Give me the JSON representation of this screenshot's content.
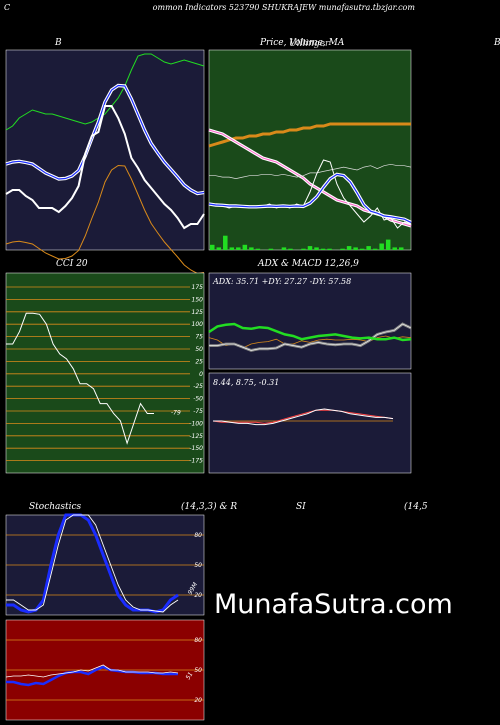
{
  "header": {
    "left_letter": "C",
    "title": "ommon  Indicators 523790  SHUKRAJEW munafasutra.tbzjar.com"
  },
  "panels": {
    "bb_title": "B",
    "price_title": "Price,  Volume,  MA",
    "price_title_overlay": "Ulllinger",
    "right_edge_letter": "B",
    "cci_title": "CCI 20",
    "adx_title": "ADX  & MACD 12,26,9",
    "adx_values": "ADX: 35.71  +DY: 27.27  -DY: 57.58",
    "macd_values": "8.44,  8.75,  -0.31",
    "cci_value": "-79",
    "stoch_title": "Stochastics",
    "stoch_params": "(14,3,3) & R",
    "rsi_title": "SI",
    "rsi_params": "(14,5",
    "stoch_tag": "99M",
    "rsi_tag": "51"
  },
  "brand": "MunafaSutra.com",
  "colors": {
    "navy": "#1b1b38",
    "green_bg": "#1a4a1a",
    "red_bg": "#8b0000",
    "orange": "#d98a1a",
    "blue": "#1a2cff",
    "lime": "#22dd22"
  },
  "chart_data": [
    {
      "type": "line",
      "title": "B",
      "series": [
        {
          "values": [
            60,
            62,
            66,
            68,
            70,
            69,
            68,
            68,
            67,
            66,
            65,
            64,
            63,
            64,
            66,
            68,
            72,
            76,
            82,
            90,
            97,
            98,
            98,
            96,
            94,
            93,
            94,
            95,
            94,
            93,
            92
          ]
        },
        {
          "values": [
            28,
            30,
            30,
            27,
            25,
            21,
            21,
            21,
            19,
            22,
            26,
            32,
            48,
            57,
            59,
            72,
            72,
            66,
            58,
            46,
            41,
            35,
            31,
            27,
            23,
            20,
            16,
            11,
            13,
            13,
            18
          ]
        }
      ]
    },
    {
      "type": "line",
      "title": "Price,  Volume,  MA",
      "series": [
        {
          "values": [
            52,
            53,
            54,
            55,
            56,
            56,
            57,
            57,
            58,
            58,
            59,
            59,
            60,
            60,
            61,
            61,
            62,
            62,
            63,
            63,
            63,
            63,
            63,
            63,
            63,
            63,
            63,
            63,
            63,
            63,
            63
          ]
        },
        {
          "values": [
            60,
            59,
            58,
            56,
            54,
            52,
            50,
            48,
            46,
            45,
            44,
            42,
            40,
            38,
            36,
            33,
            31,
            29,
            27,
            25,
            24,
            23,
            22,
            20,
            19,
            18,
            17,
            15,
            14,
            13,
            12
          ]
        },
        {
          "values": [
            12,
            12,
            11,
            11,
            10,
            11,
            12,
            12,
            13,
            13,
            12,
            13,
            12,
            11,
            12,
            14,
            14,
            15,
            16,
            17,
            18,
            17,
            16,
            18,
            19,
            17,
            19,
            20,
            19,
            19,
            18
          ]
        },
        {
          "values": [
            23,
            22,
            22,
            21,
            22,
            22,
            21,
            22,
            22,
            23,
            21,
            22,
            21,
            23,
            22,
            29,
            38,
            45,
            44,
            33,
            26,
            22,
            18,
            14,
            17,
            21,
            15,
            16,
            11,
            14,
            13
          ]
        }
      ],
      "volume": [
        4,
        2,
        11,
        2,
        2,
        4,
        2,
        1,
        0,
        1,
        0,
        2,
        1,
        0,
        1,
        3,
        2,
        1,
        1,
        0,
        1,
        3,
        2,
        1,
        3,
        1,
        5,
        8,
        2,
        2,
        0
      ]
    },
    {
      "type": "line",
      "title": "CCI 20",
      "yticks": [
        "175",
        "150",
        "125",
        "100",
        "75",
        "50",
        "25",
        "0",
        "-25",
        "-50",
        "-75",
        "-100",
        "-125",
        "-150",
        "-175"
      ],
      "series": [
        {
          "values": [
            60,
            60,
            85,
            122,
            122,
            120,
            100,
            60,
            40,
            30,
            10,
            -20,
            -20,
            -30,
            -60,
            -60,
            -80,
            -95,
            -140,
            -100,
            -60,
            -80,
            -80
          ]
        }
      ]
    },
    {
      "type": "line",
      "title": "ADX  & MACD 12,26,9",
      "series": [
        {
          "values": [
            45,
            52,
            54,
            55,
            50,
            49,
            51,
            50,
            46,
            42,
            40,
            36,
            38,
            40,
            41,
            42,
            40,
            38,
            37,
            38,
            36,
            36,
            38,
            35,
            36
          ]
        },
        {
          "values": [
            38,
            35,
            28,
            30,
            25,
            30,
            32,
            33,
            36,
            30,
            30,
            34,
            32,
            35,
            36,
            35,
            35,
            36,
            35,
            33,
            38,
            40,
            37,
            39,
            38
          ]
        },
        {
          "values": [
            28,
            28,
            30,
            30,
            26,
            22,
            24,
            24,
            25,
            30,
            28,
            26,
            30,
            32,
            30,
            29,
            30,
            30,
            28,
            34,
            42,
            45,
            47,
            55,
            50
          ]
        }
      ],
      "macd": [
        {
          "values": [
            0,
            0,
            -1,
            -2,
            -2,
            -3,
            -3,
            -2,
            0,
            2,
            4,
            6,
            9,
            10,
            9,
            8,
            6,
            5,
            4,
            3,
            3,
            2
          ]
        },
        {
          "values": [
            0,
            -1,
            -1,
            -1,
            -1,
            -1,
            -2,
            -1,
            1,
            3,
            5,
            7,
            9,
            9,
            9,
            8,
            7,
            6,
            5,
            4,
            3,
            2
          ]
        }
      ]
    },
    {
      "type": "line",
      "title": "Stochastics",
      "yticks": [
        "80",
        "50",
        "20"
      ],
      "series": [
        {
          "values": [
            15,
            15,
            10,
            5,
            5,
            10,
            40,
            70,
            95,
            100,
            100,
            100,
            90,
            70,
            50,
            30,
            15,
            8,
            5,
            5,
            4,
            3,
            10,
            15
          ]
        },
        {
          "values": [
            10,
            10,
            5,
            3,
            5,
            15,
            50,
            80,
            100,
            100,
            100,
            95,
            80,
            60,
            40,
            20,
            10,
            5,
            5,
            5,
            3,
            5,
            15,
            20
          ]
        }
      ]
    },
    {
      "type": "line",
      "title": "SI",
      "yticks": [
        "80",
        "50",
        "20"
      ],
      "series": [
        {
          "values": [
            43,
            44,
            44,
            45,
            44,
            43,
            45,
            46,
            47,
            48,
            50,
            49,
            52,
            55,
            50,
            50,
            48,
            48,
            48,
            48,
            47,
            47,
            48,
            47
          ]
        },
        {
          "values": [
            38,
            38,
            36,
            35,
            37,
            36,
            40,
            44,
            47,
            48,
            48,
            46,
            50,
            53,
            50,
            49,
            48,
            48,
            47,
            47,
            47,
            46,
            46,
            46
          ]
        }
      ]
    }
  ]
}
